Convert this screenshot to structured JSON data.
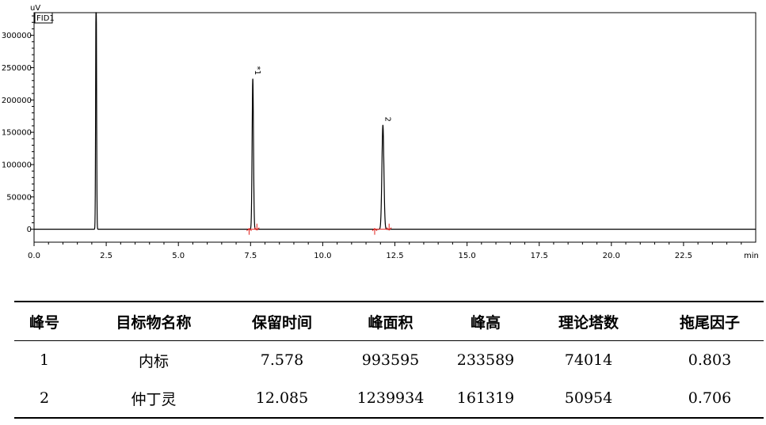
{
  "chart_data": {
    "type": "line",
    "title": "",
    "xlabel": "min",
    "ylabel": "uV",
    "legend": "FID1",
    "xlim": [
      0,
      25
    ],
    "ylim": [
      -20000,
      335000
    ],
    "xticks": [
      "0.0",
      "2.5",
      "5.0",
      "7.5",
      "10.0",
      "12.5",
      "15.0",
      "17.5",
      "20.0",
      "22.5"
    ],
    "xtick_values": [
      0,
      2.5,
      5,
      7.5,
      10,
      12.5,
      15,
      17.5,
      20,
      22.5
    ],
    "yticks": [
      "0",
      "50000",
      "100000",
      "150000",
      "200000",
      "250000",
      "300000"
    ],
    "ytick_values": [
      0,
      50000,
      100000,
      150000,
      200000,
      250000,
      300000
    ],
    "series": [
      {
        "peaks": [
          {
            "label": "",
            "rt": 2.15,
            "height": 400000,
            "width": 0.035
          },
          {
            "label": "*1",
            "rt": 7.578,
            "height": 233589,
            "width": 0.055
          },
          {
            "label": "2",
            "rt": 12.085,
            "height": 161319,
            "width": 0.08
          }
        ]
      }
    ],
    "integration_markers": [
      {
        "start": 7.45,
        "end": 7.72
      },
      {
        "start": 11.8,
        "end": 12.3
      }
    ],
    "grid": false
  },
  "table": {
    "headers": [
      "峰号",
      "目标物名称",
      "保留时间",
      "峰面积",
      "峰高",
      "理论塔数",
      "拖尾因子"
    ],
    "rows": [
      [
        "1",
        "内标",
        "7.578",
        "993595",
        "233589",
        "74014",
        "0.803"
      ],
      [
        "2",
        "仲丁灵",
        "12.085",
        "1239934",
        "161319",
        "50954",
        "0.706"
      ]
    ]
  }
}
